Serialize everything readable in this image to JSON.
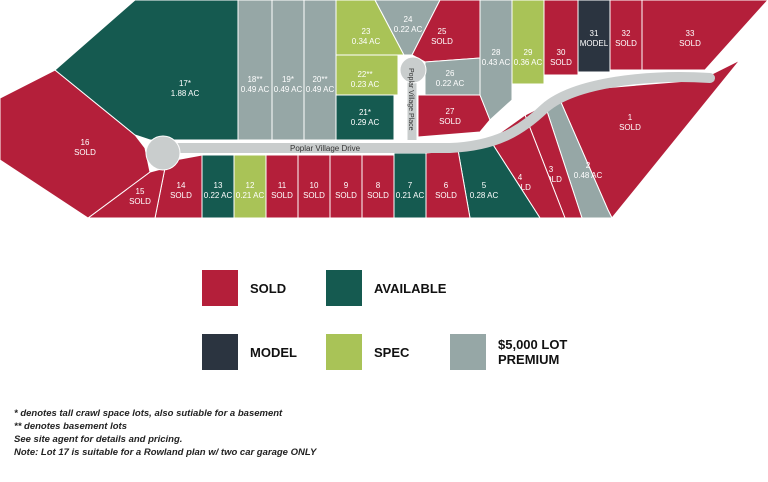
{
  "colors": {
    "sold": "#b41f3a",
    "available": "#155a50",
    "model": "#2b3440",
    "spec": "#a9c357",
    "premium": "#96a7a6",
    "road": "#c9cdcd"
  },
  "streets": {
    "drive": "Poplar Village Drive",
    "place": "Poplar Village Place"
  },
  "lots": [
    {
      "id": "1",
      "line1": "1",
      "line2": "SOLD",
      "status": "sold"
    },
    {
      "id": "2",
      "line1": "2",
      "line2": "0.48 AC",
      "status": "premium"
    },
    {
      "id": "3",
      "line1": "3",
      "line2": "SOLD",
      "status": "sold"
    },
    {
      "id": "4",
      "line1": "4",
      "line2": "SOLD",
      "status": "sold"
    },
    {
      "id": "5",
      "line1": "5",
      "line2": "0.28 AC",
      "status": "available"
    },
    {
      "id": "6",
      "line1": "6",
      "line2": "SOLD",
      "status": "sold"
    },
    {
      "id": "7",
      "line1": "7",
      "line2": "0.21 AC",
      "status": "available"
    },
    {
      "id": "8",
      "line1": "8",
      "line2": "SOLD",
      "status": "sold"
    },
    {
      "id": "9",
      "line1": "9",
      "line2": "SOLD",
      "status": "sold"
    },
    {
      "id": "10",
      "line1": "10",
      "line2": "SOLD",
      "status": "sold"
    },
    {
      "id": "11",
      "line1": "11",
      "line2": "SOLD",
      "status": "sold"
    },
    {
      "id": "12",
      "line1": "12",
      "line2": "0.21 AC",
      "status": "spec"
    },
    {
      "id": "13",
      "line1": "13",
      "line2": "0.22 AC",
      "status": "available"
    },
    {
      "id": "14",
      "line1": "14",
      "line2": "SOLD",
      "status": "sold"
    },
    {
      "id": "15",
      "line1": "15",
      "line2": "SOLD",
      "status": "sold"
    },
    {
      "id": "16",
      "line1": "16",
      "line2": "SOLD",
      "status": "sold"
    },
    {
      "id": "17",
      "line1": "17*",
      "line2": "1.88 AC",
      "status": "available"
    },
    {
      "id": "18",
      "line1": "18**",
      "line2": "0.49 AC",
      "status": "premium"
    },
    {
      "id": "19",
      "line1": "19*",
      "line2": "0.49 AC",
      "status": "premium"
    },
    {
      "id": "20",
      "line1": "20**",
      "line2": "0.49 AC",
      "status": "premium"
    },
    {
      "id": "21",
      "line1": "21*",
      "line2": "0.29 AC",
      "status": "available"
    },
    {
      "id": "22",
      "line1": "22**",
      "line2": "0.23 AC",
      "status": "spec"
    },
    {
      "id": "23",
      "line1": "23",
      "line2": "0.34 AC",
      "status": "spec"
    },
    {
      "id": "24",
      "line1": "24",
      "line2": "0.22 AC",
      "status": "premium"
    },
    {
      "id": "25",
      "line1": "25",
      "line2": "SOLD",
      "status": "sold"
    },
    {
      "id": "26",
      "line1": "26",
      "line2": "0.22 AC",
      "status": "premium"
    },
    {
      "id": "27",
      "line1": "27",
      "line2": "SOLD",
      "status": "sold"
    },
    {
      "id": "28",
      "line1": "28",
      "line2": "0.43 AC",
      "status": "premium"
    },
    {
      "id": "29",
      "line1": "29",
      "line2": "0.36 AC",
      "status": "spec"
    },
    {
      "id": "30",
      "line1": "30",
      "line2": "SOLD",
      "status": "sold"
    },
    {
      "id": "31",
      "line1": "31",
      "line2": "MODEL",
      "status": "model"
    },
    {
      "id": "32",
      "line1": "32",
      "line2": "SOLD",
      "status": "sold"
    },
    {
      "id": "33",
      "line1": "33",
      "line2": "SOLD",
      "status": "sold"
    }
  ],
  "legend": {
    "sold": "SOLD",
    "available": "AVAILABLE",
    "model": "MODEL",
    "spec": "SPEC",
    "premium_line1": "$5,000 LOT",
    "premium_line2": "PREMIUM"
  },
  "notes": [
    "* denotes tall crawl space lots, also sutiable for a basement",
    "** denotes basement lots",
    "See site agent for details and pricing.",
    "Note: Lot 17 is suitable for a Rowland plan w/ two car garage ONLY"
  ]
}
